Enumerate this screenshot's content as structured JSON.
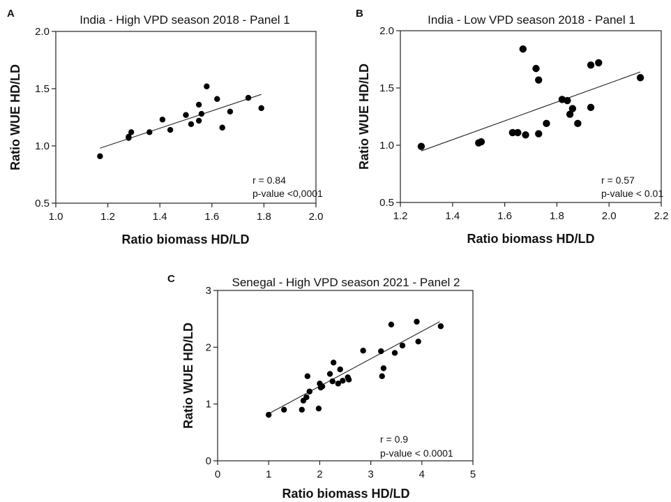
{
  "chart_data": [
    {
      "type": "scatter",
      "panel": "A",
      "title": "India - High VPD season 2018 - Panel 1",
      "xlabel": "Ratio biomass HD/LD",
      "ylabel": "Ratio WUE HD/LD",
      "xlim": [
        1.0,
        2.0
      ],
      "ylim": [
        0.5,
        2.0
      ],
      "xticks": [
        "1.0",
        "1.2",
        "1.4",
        "1.6",
        "1.8",
        "2.0"
      ],
      "yticks": [
        "0.5",
        "1.0",
        "1.5",
        "2.0"
      ],
      "points": [
        {
          "x": 1.17,
          "y": 0.91
        },
        {
          "x": 1.28,
          "y": 1.07
        },
        {
          "x": 1.28,
          "y": 1.08
        },
        {
          "x": 1.29,
          "y": 1.12
        },
        {
          "x": 1.36,
          "y": 1.12
        },
        {
          "x": 1.41,
          "y": 1.23
        },
        {
          "x": 1.44,
          "y": 1.14
        },
        {
          "x": 1.5,
          "y": 1.27
        },
        {
          "x": 1.52,
          "y": 1.19
        },
        {
          "x": 1.55,
          "y": 1.22
        },
        {
          "x": 1.55,
          "y": 1.36
        },
        {
          "x": 1.56,
          "y": 1.28
        },
        {
          "x": 1.58,
          "y": 1.52
        },
        {
          "x": 1.62,
          "y": 1.41
        },
        {
          "x": 1.64,
          "y": 1.16
        },
        {
          "x": 1.67,
          "y": 1.3
        },
        {
          "x": 1.74,
          "y": 1.42
        },
        {
          "x": 1.79,
          "y": 1.33
        }
      ],
      "fit": {
        "x": [
          1.17,
          1.79
        ],
        "y": [
          0.98,
          1.45
        ]
      },
      "annotations": [
        "r = 0.84",
        "p-value <0,0001"
      ]
    },
    {
      "type": "scatter",
      "panel": "B",
      "title": "India - Low VPD season 2018 - Panel 1",
      "xlabel": "Ratio biomass HD/LD",
      "ylabel": "Ratio WUE HD/LD",
      "xlim": [
        1.2,
        2.2
      ],
      "ylim": [
        0.5,
        2.0
      ],
      "xticks": [
        "1.2",
        "1.4",
        "1.6",
        "1.8",
        "2.0",
        "2.2"
      ],
      "yticks": [
        "0.5",
        "1.0",
        "1.5",
        "2.0"
      ],
      "points": [
        {
          "x": 1.28,
          "y": 0.99
        },
        {
          "x": 1.5,
          "y": 1.02
        },
        {
          "x": 1.51,
          "y": 1.03
        },
        {
          "x": 1.63,
          "y": 1.11
        },
        {
          "x": 1.65,
          "y": 1.11
        },
        {
          "x": 1.67,
          "y": 1.84
        },
        {
          "x": 1.68,
          "y": 1.09
        },
        {
          "x": 1.72,
          "y": 1.67
        },
        {
          "x": 1.73,
          "y": 1.57
        },
        {
          "x": 1.73,
          "y": 1.1
        },
        {
          "x": 1.76,
          "y": 1.19
        },
        {
          "x": 1.82,
          "y": 1.4
        },
        {
          "x": 1.84,
          "y": 1.39
        },
        {
          "x": 1.85,
          "y": 1.27
        },
        {
          "x": 1.86,
          "y": 1.32
        },
        {
          "x": 1.88,
          "y": 1.19
        },
        {
          "x": 1.93,
          "y": 1.7
        },
        {
          "x": 1.93,
          "y": 1.33
        },
        {
          "x": 1.96,
          "y": 1.72
        },
        {
          "x": 2.12,
          "y": 1.59
        }
      ],
      "fit": {
        "x": [
          1.28,
          2.12
        ],
        "y": [
          0.95,
          1.64
        ]
      },
      "annotations": [
        "r = 0.57",
        "p-value < 0.01"
      ]
    },
    {
      "type": "scatter",
      "panel": "C",
      "title": "Senegal - High VPD season 2021 - Panel 2",
      "xlabel": "Ratio biomass HD/LD",
      "ylabel": "Ratio WUE HD/LD",
      "xlim": [
        0,
        5
      ],
      "ylim": [
        0,
        3
      ],
      "xticks": [
        "0",
        "1",
        "2",
        "3",
        "4",
        "5"
      ],
      "yticks": [
        "0",
        "1",
        "2",
        "3"
      ],
      "points": [
        {
          "x": 1.0,
          "y": 0.81
        },
        {
          "x": 1.3,
          "y": 0.9
        },
        {
          "x": 1.65,
          "y": 0.9
        },
        {
          "x": 1.68,
          "y": 1.06
        },
        {
          "x": 1.74,
          "y": 1.12
        },
        {
          "x": 1.76,
          "y": 1.49
        },
        {
          "x": 1.8,
          "y": 1.22
        },
        {
          "x": 1.98,
          "y": 0.92
        },
        {
          "x": 2.0,
          "y": 1.36
        },
        {
          "x": 2.02,
          "y": 1.29
        },
        {
          "x": 2.05,
          "y": 1.31
        },
        {
          "x": 2.2,
          "y": 1.53
        },
        {
          "x": 2.25,
          "y": 1.4
        },
        {
          "x": 2.27,
          "y": 1.73
        },
        {
          "x": 2.36,
          "y": 1.36
        },
        {
          "x": 2.4,
          "y": 1.61
        },
        {
          "x": 2.45,
          "y": 1.41
        },
        {
          "x": 2.55,
          "y": 1.47
        },
        {
          "x": 2.57,
          "y": 1.43
        },
        {
          "x": 2.85,
          "y": 1.94
        },
        {
          "x": 3.2,
          "y": 1.93
        },
        {
          "x": 3.22,
          "y": 1.49
        },
        {
          "x": 3.25,
          "y": 1.63
        },
        {
          "x": 3.4,
          "y": 2.4
        },
        {
          "x": 3.47,
          "y": 1.9
        },
        {
          "x": 3.62,
          "y": 2.03
        },
        {
          "x": 3.9,
          "y": 2.45
        },
        {
          "x": 3.93,
          "y": 2.1
        },
        {
          "x": 4.37,
          "y": 2.37
        }
      ],
      "fit": {
        "x": [
          1.0,
          4.35
        ],
        "y": [
          0.83,
          2.45
        ]
      },
      "annotations": [
        "r = 0.9",
        "p-value < 0.0001"
      ]
    }
  ]
}
